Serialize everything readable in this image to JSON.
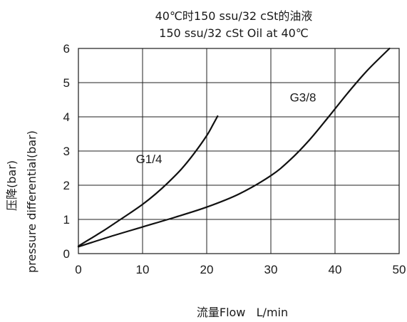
{
  "chart_data": {
    "type": "line",
    "title": "40℃时150 ssu/32 cSt的油液",
    "subtitle": "150 ssu/32 cSt Oil at 40℃",
    "xlabel": "流量Flow   L/min",
    "ylabel_line1": "压降(bar)",
    "ylabel_line2": "pressure differential(bar)",
    "xlim": [
      0,
      50
    ],
    "ylim": [
      0,
      6
    ],
    "x_ticks": [
      "0",
      "10",
      "20",
      "30",
      "40",
      "50"
    ],
    "y_ticks": [
      "0",
      "1",
      "2",
      "3",
      "4",
      "5",
      "6"
    ],
    "grid": true,
    "series": [
      {
        "name": "G1/4",
        "x": [
          0,
          2,
          4,
          6,
          8,
          10,
          12,
          14,
          16,
          18,
          20,
          21,
          21.7
        ],
        "y": [
          0.22,
          0.45,
          0.68,
          0.93,
          1.18,
          1.44,
          1.74,
          2.08,
          2.46,
          2.92,
          3.45,
          3.78,
          4.02
        ]
      },
      {
        "name": "G3/8",
        "x": [
          0,
          5,
          10,
          15,
          20,
          25,
          30,
          33,
          36,
          39,
          42,
          45,
          48.5
        ],
        "y": [
          0.2,
          0.5,
          0.78,
          1.06,
          1.36,
          1.74,
          2.28,
          2.74,
          3.32,
          4.0,
          4.7,
          5.35,
          6.0
        ]
      }
    ],
    "series_label_positions": {
      "G1/4": {
        "x": 11,
        "y": 2.65
      },
      "G3/8": {
        "x": 35,
        "y": 4.45
      }
    }
  }
}
